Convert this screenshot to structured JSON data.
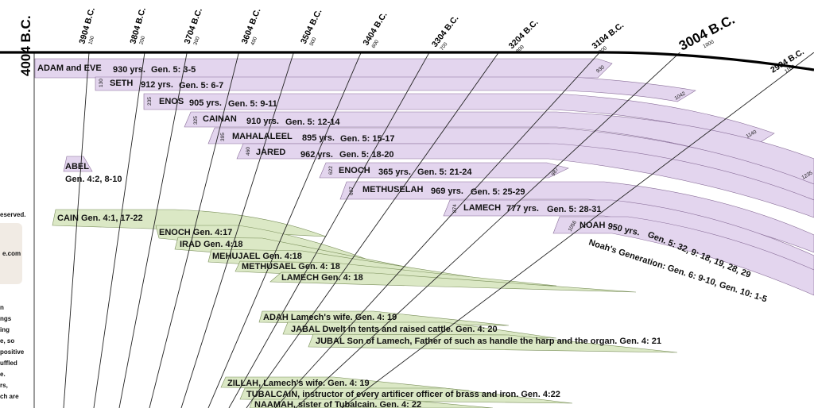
{
  "start_label": "4004 B.C.",
  "milestones": [
    {
      "year": "3904 B.C.",
      "num": "100"
    },
    {
      "year": "3804 B.C.",
      "num": "200"
    },
    {
      "year": "3704 B.C.",
      "num": "300"
    },
    {
      "year": "3604 B.C.",
      "num": "400"
    },
    {
      "year": "3504 B.C.",
      "num": "500"
    },
    {
      "year": "3404 B.C.",
      "num": "600"
    },
    {
      "year": "3304 B.C.",
      "num": "700"
    },
    {
      "year": "3204 B.C.",
      "num": "800"
    },
    {
      "year": "3104 B.C.",
      "num": "900"
    },
    {
      "year": "3004 B.C.",
      "num": "1000"
    },
    {
      "year": "2904 B.C.",
      "num": "1100"
    }
  ],
  "seth_line": [
    {
      "name": "ADAM and EVE",
      "years": "930 yrs.",
      "ref": "Gen. 5: 3-5",
      "born": "",
      "died": "930"
    },
    {
      "name": "SETH",
      "years": "912 yrs.",
      "ref": "Gen. 5: 6-7",
      "born": "130",
      "died": "1042"
    },
    {
      "name": "ENOS",
      "years": "905 yrs.",
      "ref": "Gen. 5: 9-11",
      "born": "235",
      "died": "1140"
    },
    {
      "name": "CAINAN",
      "years": "910 yrs.",
      "ref": "Gen. 5: 12-14",
      "born": "325",
      "died": "1235"
    },
    {
      "name": "MAHALALEEL",
      "years": "895 yrs.",
      "ref": "Gen. 5: 15-17",
      "born": "395",
      "died": ""
    },
    {
      "name": "JARED",
      "years": "962 yrs.",
      "ref": "Gen. 5: 18-20",
      "born": "460",
      "died": ""
    },
    {
      "name": "ENOCH",
      "years": "365 yrs.",
      "ref": "Gen. 5: 21-24",
      "born": "622",
      "died": "987"
    },
    {
      "name": "METHUSELAH",
      "years": "969 yrs.",
      "ref": "Gen. 5: 25-29",
      "born": "687",
      "died": ""
    },
    {
      "name": "LAMECH",
      "years": "777 yrs.",
      "ref": "Gen. 5: 28-31",
      "born": "874",
      "died": ""
    },
    {
      "name": "NOAH",
      "years": "950 yrs.",
      "ref": "Gen. 5: 32, 9: 18, 19, 28, 29",
      "born": "1056",
      "died": ""
    }
  ],
  "noah_generation": "Noah's Generation:  Gen. 6: 9-10,  Gen. 10: 1-5",
  "abel": {
    "name": "ABEL",
    "ref": "Gen.  4:2, 8-10"
  },
  "cain_line": [
    {
      "text": "CAIN  Gen. 4:1, 17-22"
    },
    {
      "text": "ENOCH Gen. 4:17"
    },
    {
      "text": "IRAD Gen. 4:18"
    },
    {
      "text": "MEHUJAEL Gen. 4:18"
    },
    {
      "text": "METHUSAEL Gen. 4: 18"
    },
    {
      "text": "LAMECH Gen. 4: 18"
    }
  ],
  "lamech_family": [
    {
      "text": "ADAH   Lamech's wife.   Gen. 4: 19"
    },
    {
      "text": "JABAL   Dwelt in tents and raised cattle.       Gen.  4: 20"
    },
    {
      "text": "JUBAL   Son of Lamech,  Father of such as handle the harp and the organ.    Gen. 4: 21"
    },
    {
      "text": "ZILLAH, Lamech's wife.   Gen. 4: 19"
    },
    {
      "text": "TUBALCAIN, instructor of every artificer officer of brass and iron.   Gen.  4:22"
    },
    {
      "text": "NAAMAH, sister of Tubalcain.     Gen. 4: 22"
    }
  ],
  "left_panel": {
    "rights": "eserved.",
    "web": "e.com",
    "lines": [
      "n",
      "ngs",
      "ing",
      "e, so",
      "positive",
      "uffled",
      "e.",
      "rs,",
      "ch are"
    ]
  },
  "colors": {
    "purple_band": "#e3d5ee",
    "purple_stroke": "#8a6f9a",
    "green_band": "#dbe8c5",
    "green_stroke": "#7a8f5a",
    "panel": "#f1ebe4"
  }
}
